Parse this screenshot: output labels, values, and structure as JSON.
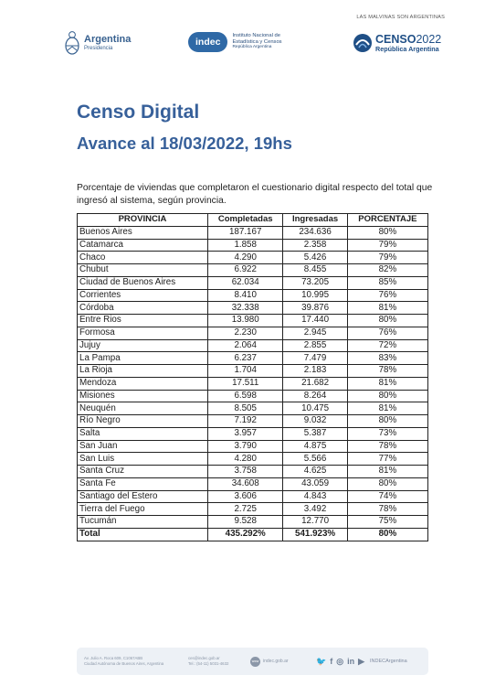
{
  "header": {
    "tagline": "LAS MALVINAS SON ARGENTINAS",
    "argentina": {
      "name": "Argentina",
      "sub": "Presidencia"
    },
    "indec": {
      "label": "indec",
      "line1": "Instituto Nacional de",
      "line2": "Estadística y Censos",
      "line3": "República Argentina"
    },
    "censo": {
      "word": "CENSO",
      "year": "2022",
      "sub": "República Argentina"
    }
  },
  "title": "Censo Digital",
  "subtitle": "Avance al 18/03/2022, 19hs",
  "description": "Porcentaje de viviendas que completaron el cuestionario digital respecto del total que ingresó al sistema, según provincia.",
  "table": {
    "headers": [
      "PROVINCIA",
      "Completadas",
      "Ingresadas",
      "PORCENTAJE"
    ],
    "rows": [
      [
        "Buenos Aires",
        "187.167",
        "234.636",
        "80%"
      ],
      [
        "Catamarca",
        "1.858",
        "2.358",
        "79%"
      ],
      [
        "Chaco",
        "4.290",
        "5.426",
        "79%"
      ],
      [
        "Chubut",
        "6.922",
        "8.455",
        "82%"
      ],
      [
        "Ciudad de Buenos Aires",
        "62.034",
        "73.205",
        "85%"
      ],
      [
        "Corrientes",
        "8.410",
        "10.995",
        "76%"
      ],
      [
        "Córdoba",
        "32.338",
        "39.876",
        "81%"
      ],
      [
        "Entre Rios",
        "13.980",
        "17.440",
        "80%"
      ],
      [
        "Formosa",
        "2.230",
        "2.945",
        "76%"
      ],
      [
        "Jujuy",
        "2.064",
        "2.855",
        "72%"
      ],
      [
        "La Pampa",
        "6.237",
        "7.479",
        "83%"
      ],
      [
        "La Rioja",
        "1.704",
        "2.183",
        "78%"
      ],
      [
        "Mendoza",
        "17.511",
        "21.682",
        "81%"
      ],
      [
        "Misiones",
        "6.598",
        "8.264",
        "80%"
      ],
      [
        "Neuquén",
        "8.505",
        "10.475",
        "81%"
      ],
      [
        "Río Negro",
        "7.192",
        "9.032",
        "80%"
      ],
      [
        "Salta",
        "3.957",
        "5.387",
        "73%"
      ],
      [
        "San Juan",
        "3.790",
        "4.875",
        "78%"
      ],
      [
        "San Luis",
        "4.280",
        "5.566",
        "77%"
      ],
      [
        "Santa Cruz",
        "3.758",
        "4.625",
        "81%"
      ],
      [
        "Santa Fe",
        "34.608",
        "43.059",
        "80%"
      ],
      [
        "Santiago del Estero",
        "3.606",
        "4.843",
        "74%"
      ],
      [
        "Tierra del Fuego",
        "2.725",
        "3.492",
        "78%"
      ],
      [
        "Tucumán",
        "9.528",
        "12.770",
        "75%"
      ]
    ],
    "total": [
      "Total",
      "435.292%",
      "541.923%",
      "80%"
    ]
  },
  "footer": {
    "address1": "Av. Julio A. Roca 609, C1067ABB",
    "address2": "Ciudad Autónoma de Buenos Aires, Argentina",
    "email": "ces@indec.gob.ar",
    "phone": "Tel.: (54-11) 5031-4632",
    "web_icon": "www",
    "web": "indec.gob.ar",
    "handle": "INDECArgentina"
  },
  "colors": {
    "title": "#37609a",
    "indec_pill": "#2f69a6",
    "footer_bg": "#edf1f6"
  },
  "icons": [
    "argentina-shield-icon",
    "censo-logo-icon",
    "twitter-icon",
    "facebook-icon",
    "instagram-icon",
    "linkedin-icon",
    "youtube-icon"
  ]
}
